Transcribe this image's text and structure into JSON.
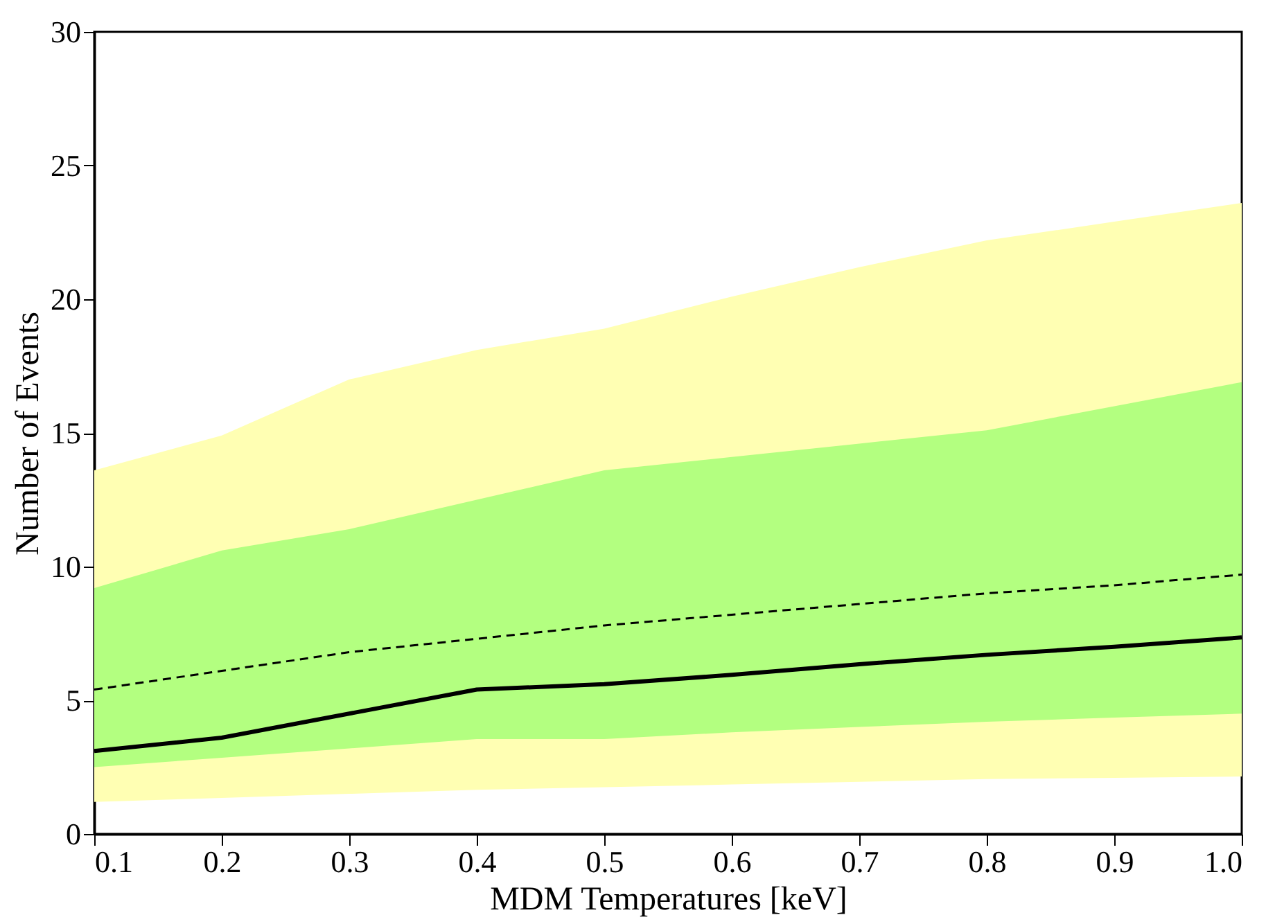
{
  "chart_data": {
    "type": "line",
    "xlabel": "MDM Temperatures [keV]",
    "ylabel": "Number of Events",
    "x": [
      0.1,
      0.2,
      0.3,
      0.4,
      0.5,
      0.6,
      0.7,
      0.8,
      0.9,
      1.0
    ],
    "series": [
      {
        "color": "#ffffb3",
        "values": [
          null,
          null,
          null,
          null,
          null,
          null,
          null,
          null,
          null,
          null
        ],
        "lower": [
          1.2,
          1.35,
          1.5,
          1.65,
          1.75,
          1.85,
          1.95,
          2.05,
          2.1,
          2.15
        ],
        "upper": [
          13.6,
          14.9,
          17.0,
          18.1,
          18.9,
          20.1,
          21.2,
          22.2,
          22.9,
          23.6
        ]
      },
      {
        "color": "#b3ff80",
        "values": [
          null,
          null,
          null,
          null,
          null,
          null,
          null,
          null,
          null,
          null
        ],
        "lower": [
          2.5,
          2.85,
          3.2,
          3.55,
          3.55,
          3.8,
          4.0,
          4.2,
          4.35,
          4.5
        ],
        "upper": [
          9.2,
          10.6,
          11.4,
          12.5,
          13.6,
          14.1,
          14.6,
          15.1,
          16.0,
          16.9
        ]
      },
      {
        "color": "#000000",
        "line_style": "dashed",
        "values": [
          5.4,
          6.1,
          6.8,
          7.3,
          7.8,
          8.2,
          8.6,
          9.0,
          9.3,
          9.7
        ]
      },
      {
        "color": "#000000",
        "line_style": "solid",
        "values": [
          3.1,
          3.6,
          4.5,
          5.4,
          5.6,
          5.95,
          6.35,
          6.7,
          7.0,
          7.35
        ]
      }
    ],
    "xlim": [
      0.1,
      1.0
    ],
    "xticks": [
      0.1,
      0.2,
      0.3,
      0.4,
      0.5,
      0.6,
      0.7,
      0.8,
      0.9,
      {
        "value": 1.0,
        "label": "1.0"
      }
    ],
    "ylim": [
      0,
      30
    ],
    "yticks": [
      0,
      5,
      10,
      15,
      20,
      25,
      30
    ],
    "grid": false,
    "marker": "none"
  }
}
